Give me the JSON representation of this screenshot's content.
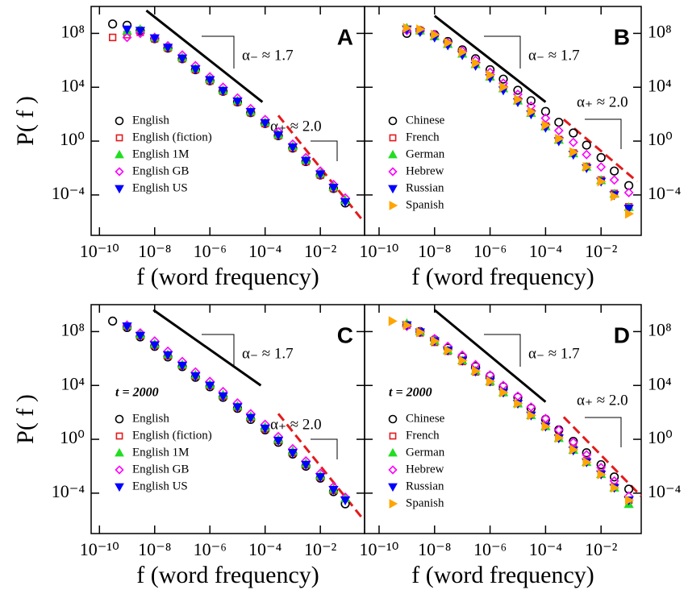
{
  "chart_data": [
    {
      "type": "scatter",
      "label": "A",
      "xlabel": "f (word frequency)",
      "ylabel": "P( f )",
      "xscale": "log",
      "yscale": "log",
      "legend": "center-left",
      "xlim": [
        5e-11,
        0.4
      ],
      "ylim": [
        1e-07,
        10000000000.0
      ],
      "xticks": [
        {
          "value": 1e-10,
          "label": "10⁻¹⁰"
        },
        {
          "value": 1e-08,
          "label": "10⁻⁸"
        },
        {
          "value": 1e-06,
          "label": "10⁻⁶"
        },
        {
          "value": 0.0001,
          "label": "10⁻⁴"
        },
        {
          "value": 0.01,
          "label": "10⁻²"
        }
      ],
      "yticks": [
        {
          "value": 0.0001,
          "label": "10⁻⁴"
        },
        {
          "value": 1,
          "label": "10⁰"
        },
        {
          "value": 10000.0,
          "label": "10⁴"
        },
        {
          "value": 100000000.0,
          "label": "10⁸"
        }
      ],
      "annotations": [
        "α₋ ≈ 1.7",
        "α₊ ≈ 2.0"
      ],
      "lines": [
        {
          "x": [
            5e-09,
            8e-05
          ],
          "y": [
            5000000000.0,
            800
          ],
          "color": "#000000",
          "dashed": false
        },
        {
          "x": [
            0.0003,
            0.34
          ],
          "y": [
            80,
            1.3e-06
          ],
          "color": "#e41a1c",
          "dashed": true
        }
      ],
      "x": [
        3e-10,
        1e-09,
        3e-09,
        1e-08,
        3e-08,
        1e-07,
        3e-07,
        1e-06,
        3e-06,
        1e-05,
        3e-05,
        0.0001,
        0.0003,
        0.001,
        0.003,
        0.01,
        0.03,
        0.08
      ],
      "series": [
        {
          "name": "English",
          "color": "#000000",
          "marker": "circle",
          "filled": false,
          "values": [
            500000000.0,
            400000000.0,
            160000000.0,
            40000000.0,
            8000000.0,
            1300000.0,
            200000.0,
            30000.0,
            5000.0,
            800,
            130,
            20,
            2.5,
            0.3,
            0.03,
            0.003,
            0.0003,
            2.5e-05
          ]
        },
        {
          "name": "English (fiction)",
          "color": "#e41a1c",
          "marker": "square",
          "filled": false,
          "values": [
            50000000.0,
            80000000.0,
            120000000.0,
            40000000.0,
            8000000.0,
            1300000.0,
            200000.0,
            30000.0,
            5000.0,
            800,
            130,
            20,
            2.5,
            0.3,
            0.03,
            0.003,
            0.0003,
            null
          ]
        },
        {
          "name": "English 1M",
          "color": "#22dd22",
          "marker": "triangle-up",
          "filled": true,
          "values": [
            null,
            150000000.0,
            200000000.0,
            50000000.0,
            10000000.0,
            1600000.0,
            250000.0,
            40000.0,
            6000.0,
            1000,
            160,
            25,
            3,
            0.4,
            0.04,
            0.004,
            0.0004,
            4e-05
          ]
        },
        {
          "name": "English GB",
          "color": "#ff00ff",
          "marker": "diamond",
          "filled": false,
          "values": [
            null,
            50000000.0,
            100000000.0,
            50000000.0,
            12000000.0,
            2500000.0,
            400000.0,
            60000.0,
            10000.0,
            1600,
            260,
            40,
            5,
            0.6,
            0.06,
            0.006,
            0.0006,
            6e-05
          ]
        },
        {
          "name": "English US",
          "color": "#0000ff",
          "marker": "triangle-down",
          "filled": true,
          "values": [
            null,
            200000000.0,
            160000000.0,
            45000000.0,
            9000000.0,
            1400000.0,
            220000.0,
            35000.0,
            5500.0,
            900,
            150,
            22,
            2.8,
            0.35,
            0.035,
            0.0035,
            0.00035,
            3e-05
          ]
        }
      ]
    },
    {
      "type": "scatter",
      "label": "B",
      "xlabel": "f (word frequency)",
      "xscale": "log",
      "yscale": "log",
      "legend": "center-left",
      "xlim": [
        3e-11,
        0.28
      ],
      "ylim": [
        1e-07,
        10000000000.0
      ],
      "xticks": [
        {
          "value": 1e-10,
          "label": "10⁻¹⁰"
        },
        {
          "value": 1e-08,
          "label": "10⁻⁸"
        },
        {
          "value": 1e-06,
          "label": "10⁻⁶"
        },
        {
          "value": 0.0001,
          "label": "10⁻⁴"
        },
        {
          "value": 0.01,
          "label": "10⁻²"
        }
      ],
      "yticks": [
        {
          "value": 0.0001,
          "label": "10⁻⁴"
        },
        {
          "value": 1,
          "label": "10⁰"
        },
        {
          "value": 10000.0,
          "label": "10⁴"
        },
        {
          "value": 100000000.0,
          "label": "10⁸"
        }
      ],
      "annotations": [
        "α₋ ≈ 1.7",
        "α₊ ≈ 2.0"
      ],
      "lines": [
        {
          "x": [
            1e-08,
            0.0001
          ],
          "y": [
            2000000000.0,
            800
          ],
          "color": "#000000",
          "dashed": false
        },
        {
          "x": [
            0.00045,
            0.2
          ],
          "y": [
            40,
            0.001
          ],
          "color": "#e41a1c",
          "dashed": true
        }
      ],
      "x": [
        1e-09,
        3e-09,
        1e-08,
        3e-08,
        1e-07,
        3e-07,
        1e-06,
        3e-06,
        1e-05,
        3e-05,
        0.0001,
        0.0003,
        0.001,
        0.003,
        0.01,
        0.03,
        0.1
      ],
      "series": [
        {
          "name": "Chinese",
          "color": "#000000",
          "marker": "circle",
          "filled": false,
          "values": [
            100000000.0,
            160000000.0,
            80000000.0,
            25000000.0,
            6000000.0,
            1300000.0,
            200000.0,
            40000.0,
            6000.0,
            1000,
            160,
            25,
            4,
            0.5,
            0.06,
            0.006,
            0.0005
          ]
        },
        {
          "name": "French",
          "color": "#e41a1c",
          "marker": "square",
          "filled": false,
          "values": [
            200000000.0,
            160000000.0,
            60000000.0,
            16000000.0,
            3000000.0,
            500000.0,
            60000.0,
            8000.0,
            1000,
            130,
            13,
            1.3,
            0.13,
            0.013,
            0.0013,
            0.00013,
            1.3e-05
          ]
        },
        {
          "name": "German",
          "color": "#22dd22",
          "marker": "triangle-up",
          "filled": true,
          "values": [
            250000000.0,
            160000000.0,
            60000000.0,
            16000000.0,
            3000000.0,
            500000.0,
            60000.0,
            8000.0,
            1000,
            120,
            12,
            1.2,
            0.12,
            0.012,
            0.0012,
            0.00012,
            1.2e-05
          ]
        },
        {
          "name": "Hebrew",
          "color": "#ff00ff",
          "marker": "diamond",
          "filled": false,
          "values": [
            160000000.0,
            160000000.0,
            80000000.0,
            20000000.0,
            5000000.0,
            1000000.0,
            130000.0,
            20000.0,
            3000.0,
            400,
            50,
            6,
            0.8,
            0.1,
            0.012,
            0.0013,
            0.00015
          ]
        },
        {
          "name": "Russian",
          "color": "#0000ff",
          "marker": "triangle-down",
          "filled": true,
          "values": [
            200000000.0,
            130000000.0,
            50000000.0,
            13000000.0,
            2500000.0,
            400000.0,
            50000.0,
            6000.0,
            800,
            100,
            10,
            1,
            0.1,
            0.01,
            0.001,
            0.0001,
            1e-05
          ]
        },
        {
          "name": "Spanish",
          "color": "#ffa500",
          "marker": "triangle-right",
          "filled": true,
          "values": [
            250000000.0,
            200000000.0,
            80000000.0,
            20000000.0,
            4000000.0,
            600000.0,
            80000.0,
            10000.0,
            1200,
            150,
            15,
            1.5,
            0.15,
            0.012,
            0.001,
            8e-05,
            4e-06
          ]
        }
      ]
    },
    {
      "type": "scatter",
      "label": "C",
      "note": "t = 2000",
      "xlabel": "f (word frequency)",
      "ylabel": "P( f )",
      "xscale": "log",
      "yscale": "log",
      "legend": "center-left",
      "xlim": [
        5e-11,
        0.4
      ],
      "ylim": [
        1e-07,
        10000000000.0
      ],
      "xticks": [
        {
          "value": 1e-10,
          "label": "10⁻¹⁰"
        },
        {
          "value": 1e-08,
          "label": "10⁻⁸"
        },
        {
          "value": 1e-06,
          "label": "10⁻⁶"
        },
        {
          "value": 0.0001,
          "label": "10⁻⁴"
        },
        {
          "value": 0.01,
          "label": "10⁻²"
        }
      ],
      "yticks": [
        {
          "value": 0.0001,
          "label": "10⁻⁴"
        },
        {
          "value": 1,
          "label": "10⁰"
        },
        {
          "value": 10000.0,
          "label": "10⁴"
        },
        {
          "value": 100000000.0,
          "label": "10⁸"
        }
      ],
      "annotations": [
        "α₋ ≈ 1.7",
        "α₊ ≈ 2.0"
      ],
      "lines": [
        {
          "x": [
            9e-09,
            7e-05
          ],
          "y": [
            4000000000.0,
            10000.0
          ],
          "color": "#000000",
          "dashed": false
        },
        {
          "x": [
            0.0003,
            0.34
          ],
          "y": [
            80,
            1.3e-06
          ],
          "color": "#e41a1c",
          "dashed": true
        }
      ],
      "x": [
        3e-10,
        1e-09,
        3e-09,
        1e-08,
        3e-08,
        1e-07,
        3e-07,
        1e-06,
        3e-06,
        1e-05,
        3e-05,
        0.0001,
        0.0003,
        0.001,
        0.003,
        0.01,
        0.03,
        0.08
      ],
      "series": [
        {
          "name": "English",
          "color": "#000000",
          "marker": "circle",
          "filled": false,
          "values": [
            600000000.0,
            200000000.0,
            40000000.0,
            8000000.0,
            1300000.0,
            250000.0,
            40000.0,
            8000.0,
            1300,
            200,
            30,
            5,
            0.6,
            0.08,
            0.01,
            0.0013,
            0.00013,
            1.6e-05
          ]
        },
        {
          "name": "English (fiction)",
          "color": "#e41a1c",
          "marker": "square",
          "filled": false,
          "values": [
            null,
            250000000.0,
            50000000.0,
            10000000.0,
            1600000.0,
            300000.0,
            50000.0,
            10000.0,
            1600,
            250,
            40,
            6,
            0.8,
            0.1,
            0.013,
            0.0016,
            0.00016,
            null
          ]
        },
        {
          "name": "English 1M",
          "color": "#22dd22",
          "marker": "triangle-up",
          "filled": true,
          "values": [
            null,
            300000000.0,
            60000000.0,
            12000000.0,
            2000000.0,
            350000.0,
            60000.0,
            12000.0,
            2000,
            300,
            50,
            8,
            1,
            0.13,
            0.016,
            0.002,
            0.0002,
            4e-05
          ]
        },
        {
          "name": "English GB",
          "color": "#ff00ff",
          "marker": "diamond",
          "filled": false,
          "values": [
            null,
            300000000.0,
            80000000.0,
            20000000.0,
            3500000.0,
            600000.0,
            100000.0,
            20000.0,
            3500,
            500,
            80,
            13,
            1.6,
            0.2,
            0.025,
            0.003,
            0.0003,
            5e-05
          ]
        },
        {
          "name": "English US",
          "color": "#0000ff",
          "marker": "triangle-down",
          "filled": true,
          "values": [
            null,
            250000000.0,
            50000000.0,
            10000000.0,
            1800000.0,
            300000.0,
            50000.0,
            10000.0,
            1600,
            250,
            40,
            6.5,
            0.8,
            0.1,
            0.013,
            0.0016,
            0.00018,
            3e-05
          ]
        }
      ]
    },
    {
      "type": "scatter",
      "label": "D",
      "note": "t = 2000",
      "xlabel": "f (word frequency)",
      "xscale": "log",
      "yscale": "log",
      "legend": "center-left",
      "xlim": [
        3e-11,
        0.28
      ],
      "ylim": [
        1e-07,
        10000000000.0
      ],
      "xticks": [
        {
          "value": 1e-10,
          "label": "10⁻¹⁰"
        },
        {
          "value": 1e-08,
          "label": "10⁻⁸"
        },
        {
          "value": 1e-06,
          "label": "10⁻⁶"
        },
        {
          "value": 0.0001,
          "label": "10⁻⁴"
        },
        {
          "value": 0.01,
          "label": "10⁻²"
        }
      ],
      "yticks": [
        {
          "value": 0.0001,
          "label": "10⁻⁴"
        },
        {
          "value": 1,
          "label": "10⁰"
        },
        {
          "value": 10000.0,
          "label": "10⁴"
        },
        {
          "value": 100000000.0,
          "label": "10⁸"
        }
      ],
      "annotations": [
        "α₋ ≈ 1.7",
        "α₊ ≈ 2.0"
      ],
      "lines": [
        {
          "x": [
            1e-08,
            0.0001
          ],
          "y": [
            4000000000.0,
            600
          ],
          "color": "#000000",
          "dashed": false
        },
        {
          "x": [
            0.00045,
            0.28
          ],
          "y": [
            45,
            6e-05
          ],
          "color": "#e41a1c",
          "dashed": true
        }
      ],
      "x": [
        3e-10,
        1e-09,
        3e-09,
        1e-08,
        3e-08,
        1e-07,
        3e-07,
        1e-06,
        3e-06,
        1e-05,
        3e-05,
        0.0001,
        0.0003,
        0.001,
        0.003,
        0.01,
        0.03,
        0.1
      ],
      "series": [
        {
          "name": "Chinese",
          "color": "#000000",
          "marker": "circle",
          "filled": false,
          "values": [
            null,
            300000000.0,
            100000000.0,
            25000000.0,
            6000000.0,
            1300000.0,
            250000.0,
            50000.0,
            8000.0,
            1300,
            200,
            30,
            5,
            0.7,
            0.1,
            0.013,
            0.0016,
            0.0002
          ]
        },
        {
          "name": "French",
          "color": "#e41a1c",
          "marker": "square",
          "filled": false,
          "values": [
            null,
            300000000.0,
            80000000.0,
            16000000.0,
            3500000.0,
            600000.0,
            100000.0,
            18000.0,
            3000.0,
            450,
            65,
            10,
            1.4,
            0.2,
            0.025,
            0.003,
            0.0003,
            3e-05
          ]
        },
        {
          "name": "German",
          "color": "#22dd22",
          "marker": "triangle-up",
          "filled": true,
          "values": [
            null,
            400000000.0,
            100000000.0,
            20000000.0,
            4000000.0,
            700000.0,
            120000.0,
            20000.0,
            3000.0,
            450,
            60,
            9,
            1.2,
            0.16,
            0.02,
            0.0025,
            0.00025,
            1.5e-05
          ]
        },
        {
          "name": "Hebrew",
          "color": "#ff00ff",
          "marker": "diamond",
          "filled": false,
          "values": [
            null,
            250000000.0,
            100000000.0,
            30000000.0,
            8000000.0,
            1800000.0,
            350000.0,
            60000.0,
            10000.0,
            1600,
            250,
            35,
            5,
            0.6,
            0.07,
            0.008,
            0.0008,
            6e-05
          ]
        },
        {
          "name": "Russian",
          "color": "#0000ff",
          "marker": "triangle-down",
          "filled": true,
          "values": [
            null,
            300000000.0,
            90000000.0,
            20000000.0,
            4000000.0,
            700000.0,
            110000.0,
            20000.0,
            3000.0,
            450,
            60,
            9,
            1.2,
            0.15,
            0.02,
            0.0025,
            0.00025,
            3e-05
          ]
        },
        {
          "name": "Spanish",
          "color": "#ffa500",
          "marker": "triangle-right",
          "filled": true,
          "values": [
            600000000.0,
            300000000.0,
            90000000.0,
            20000000.0,
            4000000.0,
            700000.0,
            120000.0,
            20000.0,
            3000.0,
            450,
            60,
            9,
            1.3,
            0.17,
            0.02,
            0.0025,
            0.00025,
            3e-05
          ]
        }
      ]
    }
  ]
}
